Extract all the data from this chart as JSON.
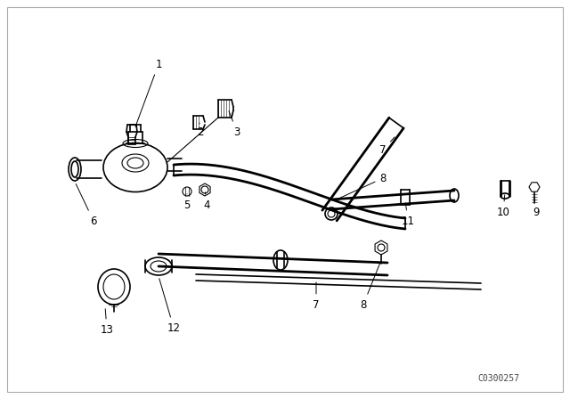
{
  "bg_color": "#ffffff",
  "line_color": "#000000",
  "watermark": "C0300257",
  "border_color": "#cccccc"
}
